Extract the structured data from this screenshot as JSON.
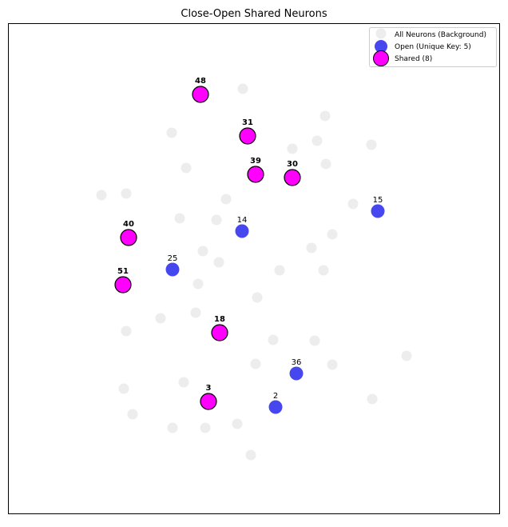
{
  "chart_data": {
    "type": "scatter",
    "title": "Close-Open Shared Neurons",
    "xlabel": "",
    "ylabel": "",
    "xlim": [
      0,
      636
    ],
    "ylim": [
      0,
      655
    ],
    "y_inverted": true,
    "grid": false,
    "axis_ticks": false,
    "legend_position": "top-right",
    "legend": [
      {
        "label": "All Neurons (Background)",
        "series": "background"
      },
      {
        "label": "Open (Unique Key: 5)",
        "series": "open"
      },
      {
        "label": "Shared (8)",
        "series": "shared"
      }
    ],
    "series": [
      {
        "name": "All Neurons (Background)",
        "key": "background",
        "color": "#e6e6e6",
        "points": [
          [
            304,
            111
          ],
          [
            407,
            145
          ],
          [
            215,
            166
          ],
          [
            397,
            176
          ],
          [
            366,
            186
          ],
          [
            465,
            181
          ],
          [
            233,
            210
          ],
          [
            408,
            205
          ],
          [
            127,
            244
          ],
          [
            158,
            242
          ],
          [
            283,
            249
          ],
          [
            442,
            255
          ],
          [
            225,
            273
          ],
          [
            271,
            275
          ],
          [
            416,
            293
          ],
          [
            390,
            310
          ],
          [
            254,
            314
          ],
          [
            274,
            328
          ],
          [
            350,
            338
          ],
          [
            405,
            338
          ],
          [
            248,
            355
          ],
          [
            322,
            372
          ],
          [
            201,
            398
          ],
          [
            245,
            391
          ],
          [
            158,
            414
          ],
          [
            342,
            425
          ],
          [
            394,
            426
          ],
          [
            509,
            445
          ],
          [
            320,
            455
          ],
          [
            416,
            456
          ],
          [
            230,
            478
          ],
          [
            155,
            486
          ],
          [
            466,
            499
          ],
          [
            166,
            518
          ],
          [
            297,
            530
          ],
          [
            216,
            535
          ],
          [
            257,
            535
          ],
          [
            314,
            569
          ]
        ]
      },
      {
        "name": "Open (Unique Key: 5)",
        "key": "open",
        "color": "#3333ee",
        "points": [
          {
            "x": 473,
            "y": 264,
            "label": "15"
          },
          {
            "x": 303,
            "y": 289,
            "label": "14"
          },
          {
            "x": 216,
            "y": 337,
            "label": "25"
          },
          {
            "x": 371,
            "y": 467,
            "label": "36"
          },
          {
            "x": 345,
            "y": 509,
            "label": "2"
          }
        ]
      },
      {
        "name": "Shared (8)",
        "key": "shared",
        "color": "#ff00ff",
        "points": [
          {
            "x": 251,
            "y": 118,
            "label": "48"
          },
          {
            "x": 310,
            "y": 170,
            "label": "31"
          },
          {
            "x": 320,
            "y": 218,
            "label": "39"
          },
          {
            "x": 366,
            "y": 222,
            "label": "30"
          },
          {
            "x": 161,
            "y": 297,
            "label": "40"
          },
          {
            "x": 154,
            "y": 356,
            "label": "51"
          },
          {
            "x": 275,
            "y": 416,
            "label": "18"
          },
          {
            "x": 261,
            "y": 502,
            "label": "3"
          }
        ]
      }
    ]
  }
}
